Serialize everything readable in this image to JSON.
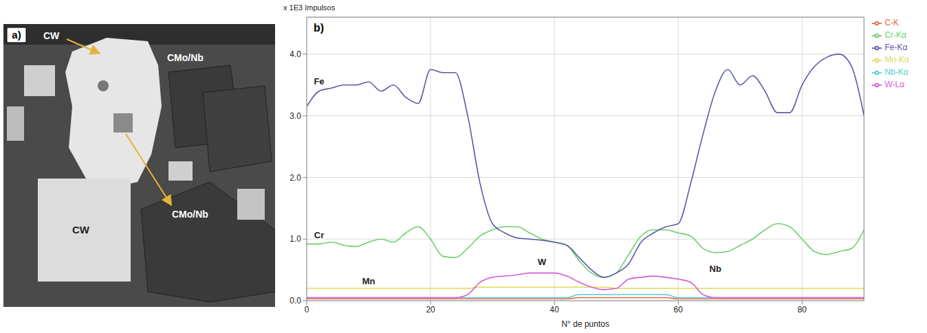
{
  "panel_a": {
    "label": "a)",
    "annotations": [
      "CW",
      "CMo/Nb",
      "CW",
      "CMo/Nb"
    ]
  },
  "chart_data": {
    "type": "line",
    "panel": "b)",
    "ylabel": "x 1E3 Impulsos",
    "xlabel": "N° de puntos",
    "x": [
      0,
      2,
      4,
      6,
      8,
      10,
      12,
      14,
      16,
      18,
      20,
      22,
      24,
      26,
      28,
      30,
      32,
      34,
      36,
      38,
      40,
      42,
      44,
      46,
      48,
      50,
      52,
      54,
      56,
      58,
      60,
      62,
      64,
      66,
      68,
      70,
      72,
      74,
      76,
      78,
      80,
      82,
      84,
      86,
      88,
      90
    ],
    "series": [
      {
        "name": "C-K",
        "color": "#e8684a",
        "values": [
          0.03,
          0.03,
          0.03,
          0.03,
          0.03,
          0.03,
          0.03,
          0.03,
          0.03,
          0.03,
          0.03,
          0.03,
          0.03,
          0.03,
          0.03,
          0.03,
          0.03,
          0.03,
          0.03,
          0.03,
          0.03,
          0.03,
          0.05,
          0.05,
          0.05,
          0.05,
          0.05,
          0.05,
          0.05,
          0.05,
          0.03,
          0.03,
          0.03,
          0.03,
          0.03,
          0.03,
          0.03,
          0.03,
          0.03,
          0.03,
          0.03,
          0.03,
          0.03,
          0.03,
          0.03,
          0.03
        ]
      },
      {
        "name": "Cr-Kα",
        "label": "Cr",
        "color": "#6ccf6c",
        "values": [
          0.92,
          0.92,
          0.95,
          0.9,
          0.88,
          0.95,
          1.0,
          0.95,
          1.1,
          1.2,
          1.0,
          0.72,
          0.7,
          0.85,
          1.05,
          1.15,
          1.2,
          1.2,
          1.1,
          1.0,
          0.95,
          0.9,
          0.65,
          0.45,
          0.38,
          0.45,
          0.75,
          1.05,
          1.15,
          1.15,
          1.1,
          1.05,
          0.85,
          0.78,
          0.8,
          0.9,
          1.0,
          1.15,
          1.25,
          1.2,
          1.0,
          0.8,
          0.75,
          0.8,
          0.85,
          1.15
        ]
      },
      {
        "name": "Fe-Kα",
        "label": "Fe",
        "color": "#5a5aa8",
        "values": [
          3.15,
          3.4,
          3.45,
          3.5,
          3.5,
          3.55,
          3.4,
          3.5,
          3.3,
          3.2,
          3.75,
          3.7,
          3.7,
          3.0,
          1.9,
          1.25,
          1.1,
          1.02,
          1.0,
          0.98,
          0.95,
          0.9,
          0.7,
          0.5,
          0.38,
          0.45,
          0.6,
          0.95,
          1.1,
          1.2,
          1.25,
          1.9,
          2.7,
          3.4,
          3.75,
          3.5,
          3.65,
          3.4,
          3.05,
          3.05,
          3.5,
          3.8,
          3.95,
          4.0,
          3.8,
          3.0
        ]
      },
      {
        "name": "Mn-Kα",
        "label": "Mn",
        "color": "#e0d85a",
        "values": [
          0.2,
          0.2,
          0.2,
          0.2,
          0.2,
          0.2,
          0.2,
          0.2,
          0.2,
          0.2,
          0.2,
          0.2,
          0.2,
          0.2,
          0.22,
          0.22,
          0.22,
          0.22,
          0.22,
          0.22,
          0.22,
          0.22,
          0.22,
          0.22,
          0.22,
          0.2,
          0.2,
          0.2,
          0.2,
          0.2,
          0.2,
          0.2,
          0.2,
          0.2,
          0.2,
          0.2,
          0.2,
          0.2,
          0.2,
          0.2,
          0.2,
          0.2,
          0.2,
          0.2,
          0.2,
          0.2
        ]
      },
      {
        "name": "Nb-Kα",
        "label": "Nb",
        "color": "#4fcfd6",
        "values": [
          0.05,
          0.05,
          0.05,
          0.05,
          0.05,
          0.05,
          0.05,
          0.05,
          0.05,
          0.05,
          0.05,
          0.05,
          0.05,
          0.05,
          0.05,
          0.05,
          0.05,
          0.05,
          0.05,
          0.05,
          0.05,
          0.05,
          0.1,
          0.1,
          0.1,
          0.1,
          0.1,
          0.1,
          0.1,
          0.1,
          0.05,
          0.05,
          0.05,
          0.05,
          0.05,
          0.05,
          0.05,
          0.05,
          0.05,
          0.05,
          0.05,
          0.05,
          0.05,
          0.05,
          0.05,
          0.05
        ]
      },
      {
        "name": "W-Lα",
        "label": "W",
        "color": "#d65bd6",
        "values": [
          0.05,
          0.05,
          0.05,
          0.05,
          0.05,
          0.05,
          0.05,
          0.05,
          0.05,
          0.05,
          0.05,
          0.05,
          0.05,
          0.1,
          0.3,
          0.38,
          0.4,
          0.42,
          0.45,
          0.45,
          0.45,
          0.4,
          0.3,
          0.22,
          0.18,
          0.2,
          0.35,
          0.38,
          0.4,
          0.38,
          0.35,
          0.3,
          0.1,
          0.05,
          0.05,
          0.05,
          0.05,
          0.05,
          0.05,
          0.05,
          0.05,
          0.05,
          0.05,
          0.05,
          0.05,
          0.05
        ]
      }
    ],
    "xlim": [
      0,
      90
    ],
    "xticks": [
      0,
      20,
      40,
      60,
      80
    ],
    "ylim": [
      0,
      4.6
    ],
    "yticks": [
      {
        "value": 0,
        "label": "0.0"
      },
      {
        "value": 1,
        "label": "1.0"
      },
      {
        "value": 2,
        "label": "2.0"
      },
      {
        "value": 3,
        "label": "3.0"
      },
      {
        "value": 4,
        "label": "4.0"
      }
    ],
    "grid": true,
    "legend": "right"
  }
}
